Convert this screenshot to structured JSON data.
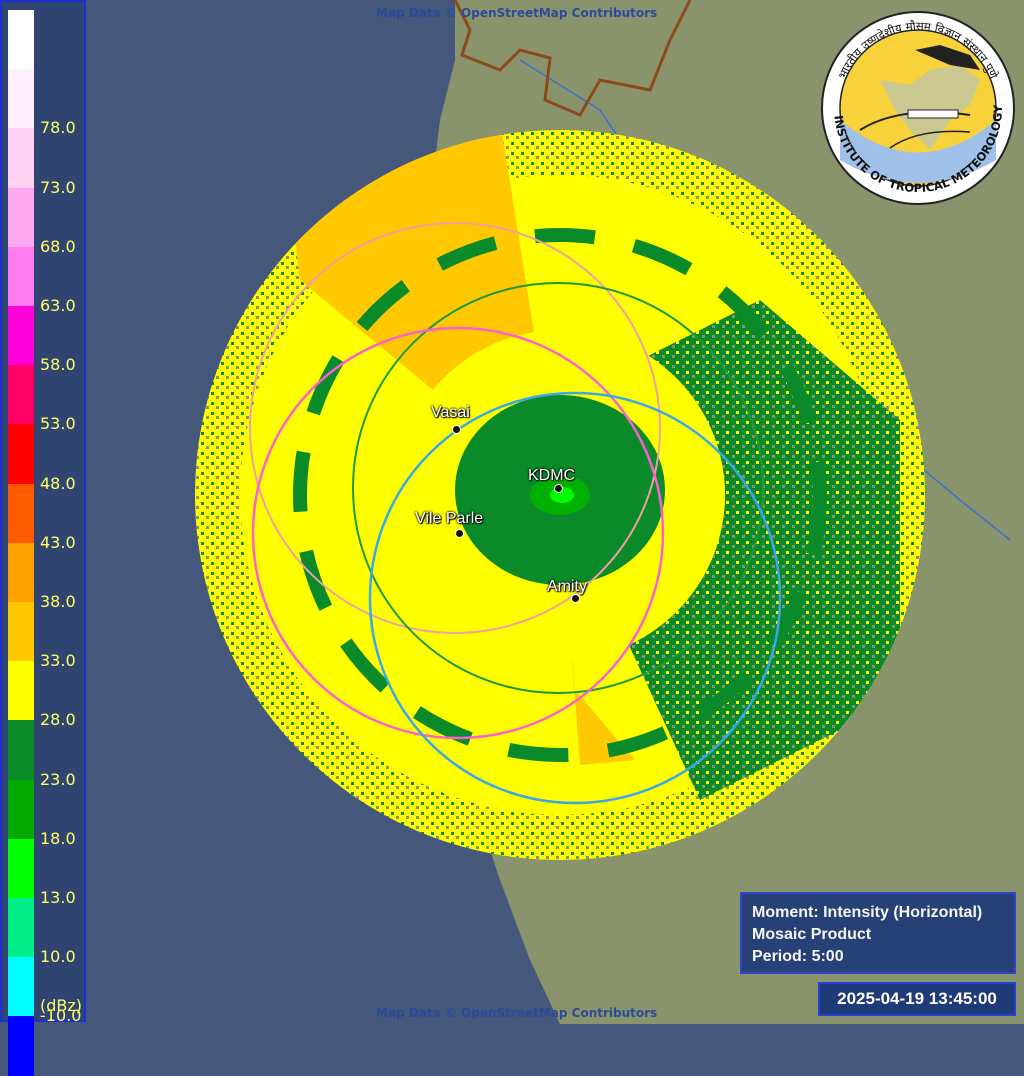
{
  "legend": {
    "unit": "(dBz)",
    "bins": [
      {
        "label": "",
        "color": "#ffffff"
      },
      {
        "label": "78.0",
        "color": "#fff0fb"
      },
      {
        "label": "73.0",
        "color": "#ffd2f5"
      },
      {
        "label": "68.0",
        "color": "#ffaaf0"
      },
      {
        "label": "63.0",
        "color": "#ff7cf0"
      },
      {
        "label": "58.0",
        "color": "#ff00d8"
      },
      {
        "label": "53.0",
        "color": "#ff0066"
      },
      {
        "label": "48.0",
        "color": "#ff0000"
      },
      {
        "label": "43.0",
        "color": "#ff5a00"
      },
      {
        "label": "38.0",
        "color": "#ffa200"
      },
      {
        "label": "33.0",
        "color": "#ffc800"
      },
      {
        "label": "28.0",
        "color": "#ffff00"
      },
      {
        "label": "23.0",
        "color": "#0a8a28"
      },
      {
        "label": "18.0",
        "color": "#00a800"
      },
      {
        "label": "13.0",
        "color": "#00ff00"
      },
      {
        "label": "10.0",
        "color": "#00ee88"
      },
      {
        "label": "-10.0",
        "color": "#00ffff"
      },
      {
        "label": "",
        "color": "#0000ff"
      }
    ]
  },
  "map": {
    "attribution_top": "Map Data © OpenStreetMap Contributors",
    "attribution_bottom": "Map Data © OpenStreetMap Contributors",
    "places": [
      {
        "name": "Vasai"
      },
      {
        "name": "KDMC"
      },
      {
        "name": "Vile Parle"
      },
      {
        "name": "Amity"
      }
    ],
    "colors": {
      "sea": "#45577a",
      "land": "#8a946c",
      "reflectivity_low": "#ffff00",
      "reflectivity_mid": "#0a8a28",
      "reflectivity_high": "#ffc800"
    }
  },
  "logo": {
    "name": "INDIAN INSTITUTE OF TROPICAL METEOROLOGY PUNE",
    "hindi": "भारतीय उष्णदेशीय मौसम विज्ञान संस्थान पुणे"
  },
  "info": {
    "moment": "Moment: Intensity (Horizontal)",
    "product": "Mosaic Product",
    "period": "Period: 5:00"
  },
  "timestamp": "2025-04-19 13:45:00"
}
